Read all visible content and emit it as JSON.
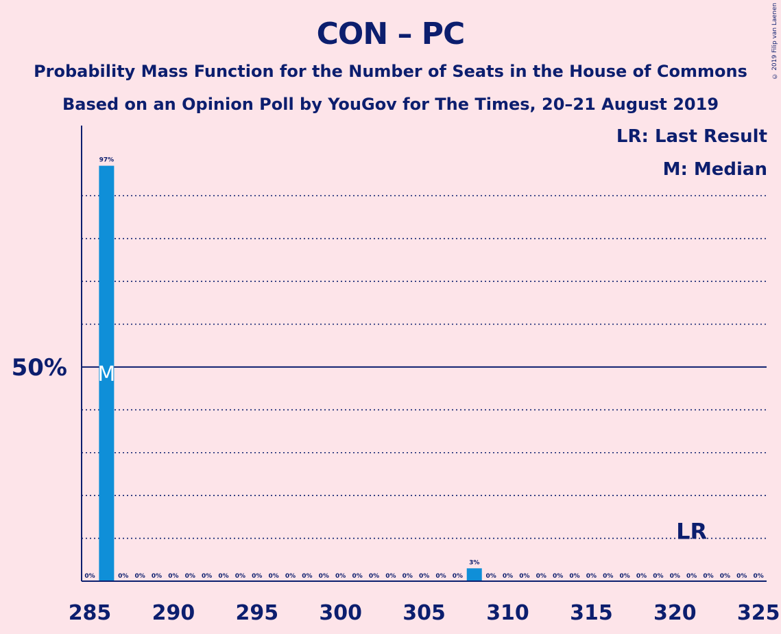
{
  "header": {
    "title": "CON – PC",
    "subtitle_1": "Probability Mass Function for the Number of Seats in the House of Commons",
    "subtitle_2": "Based on an Opinion Poll by YouGov for The Times, 20–21 August 2019",
    "credit": "© 2019 Filip van Laenen"
  },
  "legend": {
    "last_result": "LR: Last Result",
    "median": "M: Median"
  },
  "colors": {
    "background": "#fde4e9",
    "bar": "#0f8fd8",
    "text": "#0c1e6e"
  },
  "chart_data": {
    "type": "bar",
    "x": [
      285,
      286,
      287,
      288,
      289,
      290,
      291,
      292,
      293,
      294,
      295,
      296,
      297,
      298,
      299,
      300,
      301,
      302,
      303,
      304,
      305,
      306,
      307,
      308,
      309,
      310,
      311,
      312,
      313,
      314,
      315,
      316,
      317,
      318,
      319,
      320,
      321,
      322,
      323,
      324,
      325
    ],
    "values": [
      0,
      97,
      0,
      0,
      0,
      0,
      0,
      0,
      0,
      0,
      0,
      0,
      0,
      0,
      0,
      0,
      0,
      0,
      0,
      0,
      0,
      0,
      0,
      3,
      0,
      0,
      0,
      0,
      0,
      0,
      0,
      0,
      0,
      0,
      0,
      0,
      0,
      0,
      0,
      0,
      0
    ],
    "data_labels": [
      "0%",
      "97%",
      "0%",
      "0%",
      "0%",
      "0%",
      "0%",
      "0%",
      "0%",
      "0%",
      "0%",
      "0%",
      "0%",
      "0%",
      "0%",
      "0%",
      "0%",
      "0%",
      "0%",
      "0%",
      "0%",
      "0%",
      "0%",
      "3%",
      "0%",
      "0%",
      "0%",
      "0%",
      "0%",
      "0%",
      "0%",
      "0%",
      "0%",
      "0%",
      "0%",
      "0%",
      "0%",
      "0%",
      "0%",
      "0%",
      "0%"
    ],
    "xticks": [
      285,
      290,
      295,
      300,
      305,
      310,
      315,
      320,
      325
    ],
    "xtick_labels": [
      "285",
      "290",
      "295",
      "300",
      "305",
      "310",
      "315",
      "320",
      "325"
    ],
    "xlim": [
      285,
      325
    ],
    "ylim": [
      0,
      100
    ],
    "ytick_label": "50%",
    "ytick_value": 50,
    "grid": true,
    "median": 286,
    "median_marker": "M",
    "last_result": 321,
    "last_result_marker": "LR"
  }
}
